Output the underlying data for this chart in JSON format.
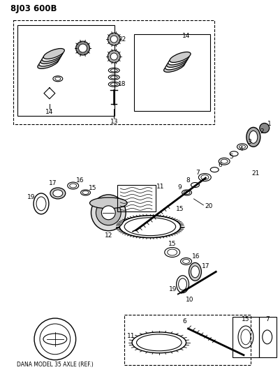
{
  "title": "8J03 600B",
  "background_color": "#ffffff",
  "fig_width": 4.01,
  "fig_height": 5.33,
  "dpi": 100,
  "bottom_label": "DANA MODEL 35 AXLE (REF.)"
}
